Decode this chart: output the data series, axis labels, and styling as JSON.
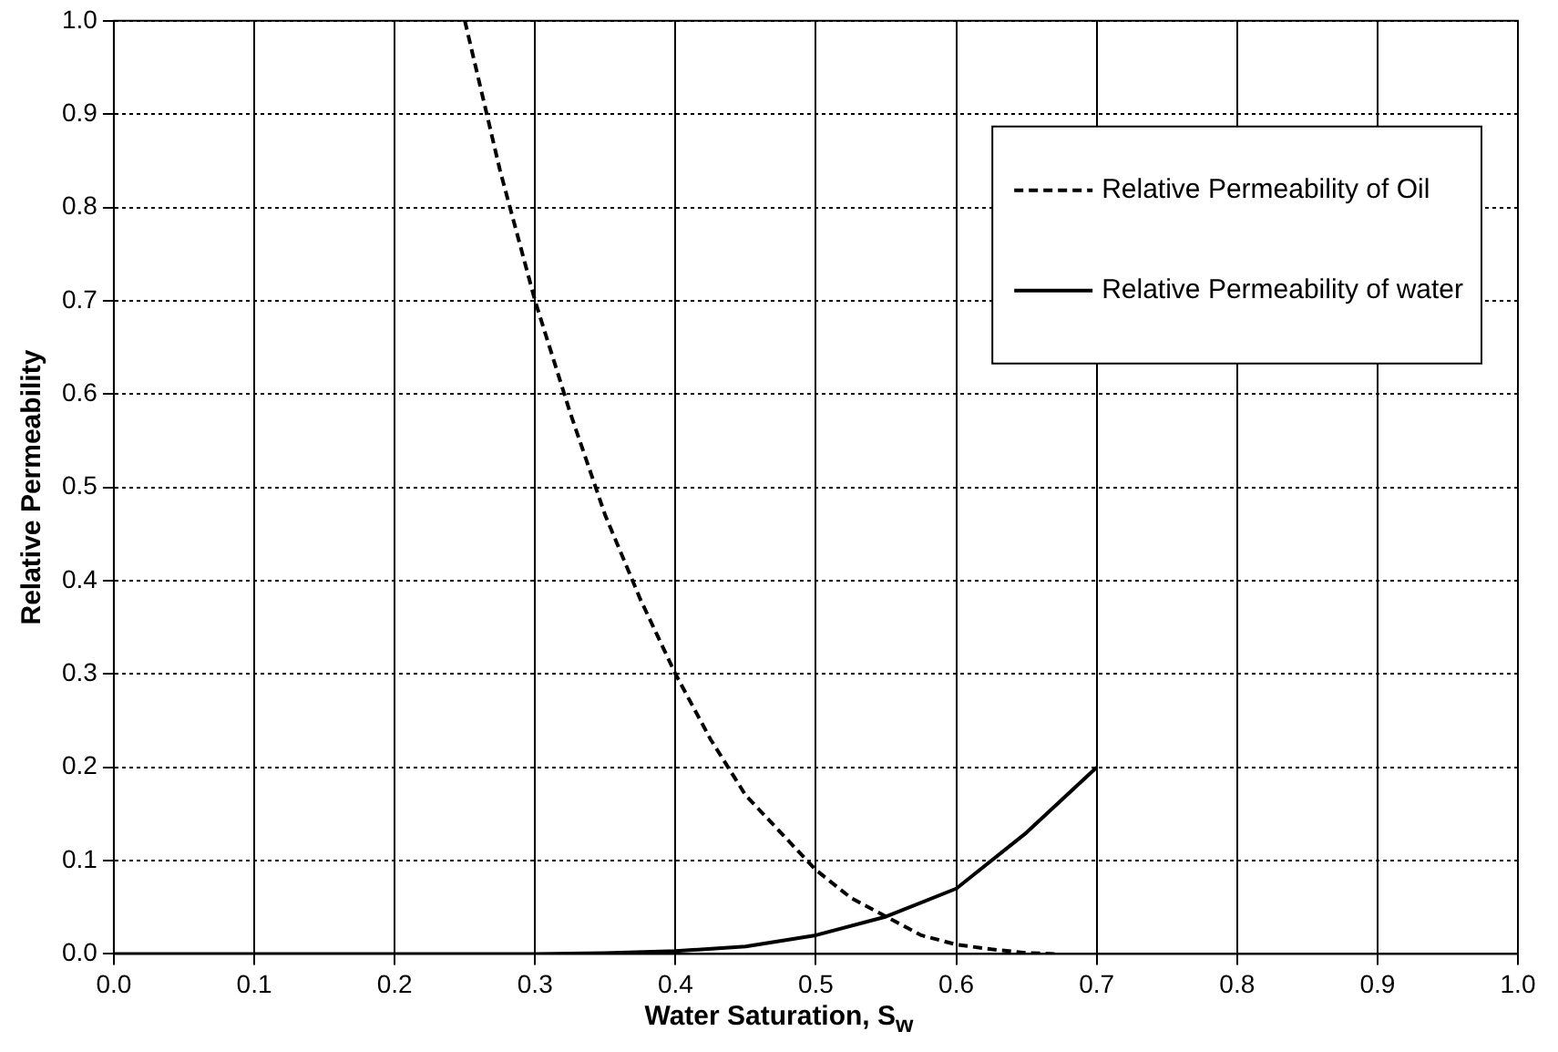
{
  "chart_data": {
    "type": "line",
    "xlabel": "Water Saturation, S$_{w}$",
    "ylabel": "Relative Permeability",
    "xlim": [
      0,
      1
    ],
    "ylim": [
      0,
      1
    ],
    "xticks": [
      {
        "value": 0,
        "label": "0.0"
      },
      {
        "value": 0.1,
        "label": "0.1"
      },
      {
        "value": 0.2,
        "label": "0.2"
      },
      {
        "value": 0.3,
        "label": "0.3"
      },
      {
        "value": 0.4,
        "label": "0.4"
      },
      {
        "value": 0.5,
        "label": "0.5"
      },
      {
        "value": 0.6,
        "label": "0.6"
      },
      {
        "value": 0.7,
        "label": "0.7"
      },
      {
        "value": 0.8,
        "label": "0.8"
      },
      {
        "value": 0.9,
        "label": "0.9"
      },
      {
        "value": 1,
        "label": "1.0"
      }
    ],
    "yticks": [
      {
        "value": 0,
        "label": "0.0"
      },
      {
        "value": 0.1,
        "label": "0.1"
      },
      {
        "value": 0.2,
        "label": "0.2"
      },
      {
        "value": 0.3,
        "label": "0.3"
      },
      {
        "value": 0.4,
        "label": "0.4"
      },
      {
        "value": 0.5,
        "label": "0.5"
      },
      {
        "value": 0.6,
        "label": "0.6"
      },
      {
        "value": 0.7,
        "label": "0.7"
      },
      {
        "value": 0.8,
        "label": "0.8"
      },
      {
        "value": 0.9,
        "label": "0.9"
      },
      {
        "value": 1,
        "label": "1.0"
      }
    ],
    "grid": true,
    "legend": "top right",
    "marker": "none",
    "series": [
      {
        "name": "Relative Permeability of Oil",
        "color": "#000000",
        "line_style": "dashed",
        "x": [
          0.25,
          0.275,
          0.3,
          0.325,
          0.35,
          0.375,
          0.4,
          0.425,
          0.45,
          0.475,
          0.5,
          0.525,
          0.55,
          0.575,
          0.6,
          0.625,
          0.65,
          0.67
        ],
        "values": [
          1.0,
          0.84,
          0.7,
          0.58,
          0.47,
          0.38,
          0.3,
          0.23,
          0.17,
          0.13,
          0.09,
          0.06,
          0.04,
          0.02,
          0.01,
          0.005,
          0.001,
          0
        ]
      },
      {
        "name": "Relative Permeability of water",
        "color": "#000000",
        "line_style": "solid",
        "x": [
          0,
          0.1,
          0.2,
          0.3,
          0.35,
          0.4,
          0.45,
          0.5,
          0.55,
          0.6,
          0.65,
          0.7
        ],
        "values": [
          0,
          0,
          0,
          0,
          0.001,
          0.003,
          0.008,
          0.02,
          0.04,
          0.07,
          0.13,
          0.2
        ]
      }
    ]
  }
}
